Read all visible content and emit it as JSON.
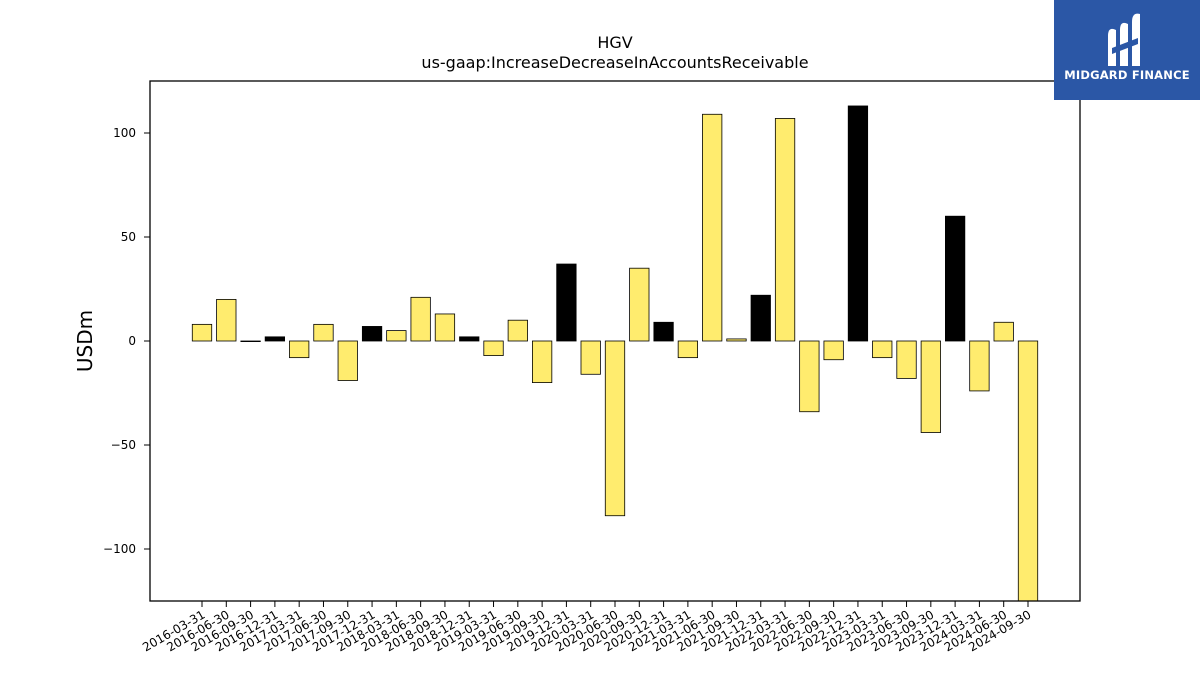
{
  "brand": {
    "name": "MIDGARD FINANCE",
    "color": "#2b57a6"
  },
  "chart_data": {
    "type": "bar",
    "title": "HGV",
    "subtitle": "us-gaap:IncreaseDecreaseInAccountsReceivable",
    "xlabel": "",
    "ylabel": "USDm",
    "ylim": [
      -125,
      125
    ],
    "yticks": [
      -100,
      -50,
      0,
      50,
      100
    ],
    "grid": false,
    "colors": {
      "yellow": "#ffec6e",
      "black": "#000000"
    },
    "categories": [
      "2016-03-31",
      "2016-06-30",
      "2016-09-30",
      "2016-12-31",
      "2017-03-31",
      "2017-06-30",
      "2017-09-30",
      "2017-12-31",
      "2018-03-31",
      "2018-06-30",
      "2018-09-30",
      "2018-12-31",
      "2019-03-31",
      "2019-06-30",
      "2019-09-30",
      "2019-12-31",
      "2020-03-31",
      "2020-06-30",
      "2020-09-30",
      "2020-12-31",
      "2021-03-31",
      "2021-06-30",
      "2021-09-30",
      "2021-12-31",
      "2022-03-31",
      "2022-06-30",
      "2022-09-30",
      "2022-12-31",
      "2023-03-31",
      "2023-06-30",
      "2023-09-30",
      "2023-12-31",
      "2024-03-31",
      "2024-06-30",
      "2024-09-30"
    ],
    "values": [
      8,
      20,
      0,
      2,
      -8,
      8,
      -19,
      7,
      5,
      21,
      13,
      2,
      -7,
      10,
      -20,
      37,
      -16,
      -84,
      35,
      9,
      -8,
      109,
      1,
      22,
      107,
      -34,
      -9,
      113,
      -8,
      -18,
      -44,
      60,
      -24,
      9,
      -125
    ],
    "bar_colors": [
      "yellow",
      "yellow",
      "yellow",
      "black",
      "yellow",
      "yellow",
      "yellow",
      "black",
      "yellow",
      "yellow",
      "yellow",
      "black",
      "yellow",
      "yellow",
      "yellow",
      "black",
      "yellow",
      "yellow",
      "yellow",
      "black",
      "yellow",
      "yellow",
      "yellow",
      "black",
      "yellow",
      "yellow",
      "yellow",
      "black",
      "yellow",
      "yellow",
      "yellow",
      "black",
      "yellow",
      "yellow",
      "yellow"
    ]
  }
}
